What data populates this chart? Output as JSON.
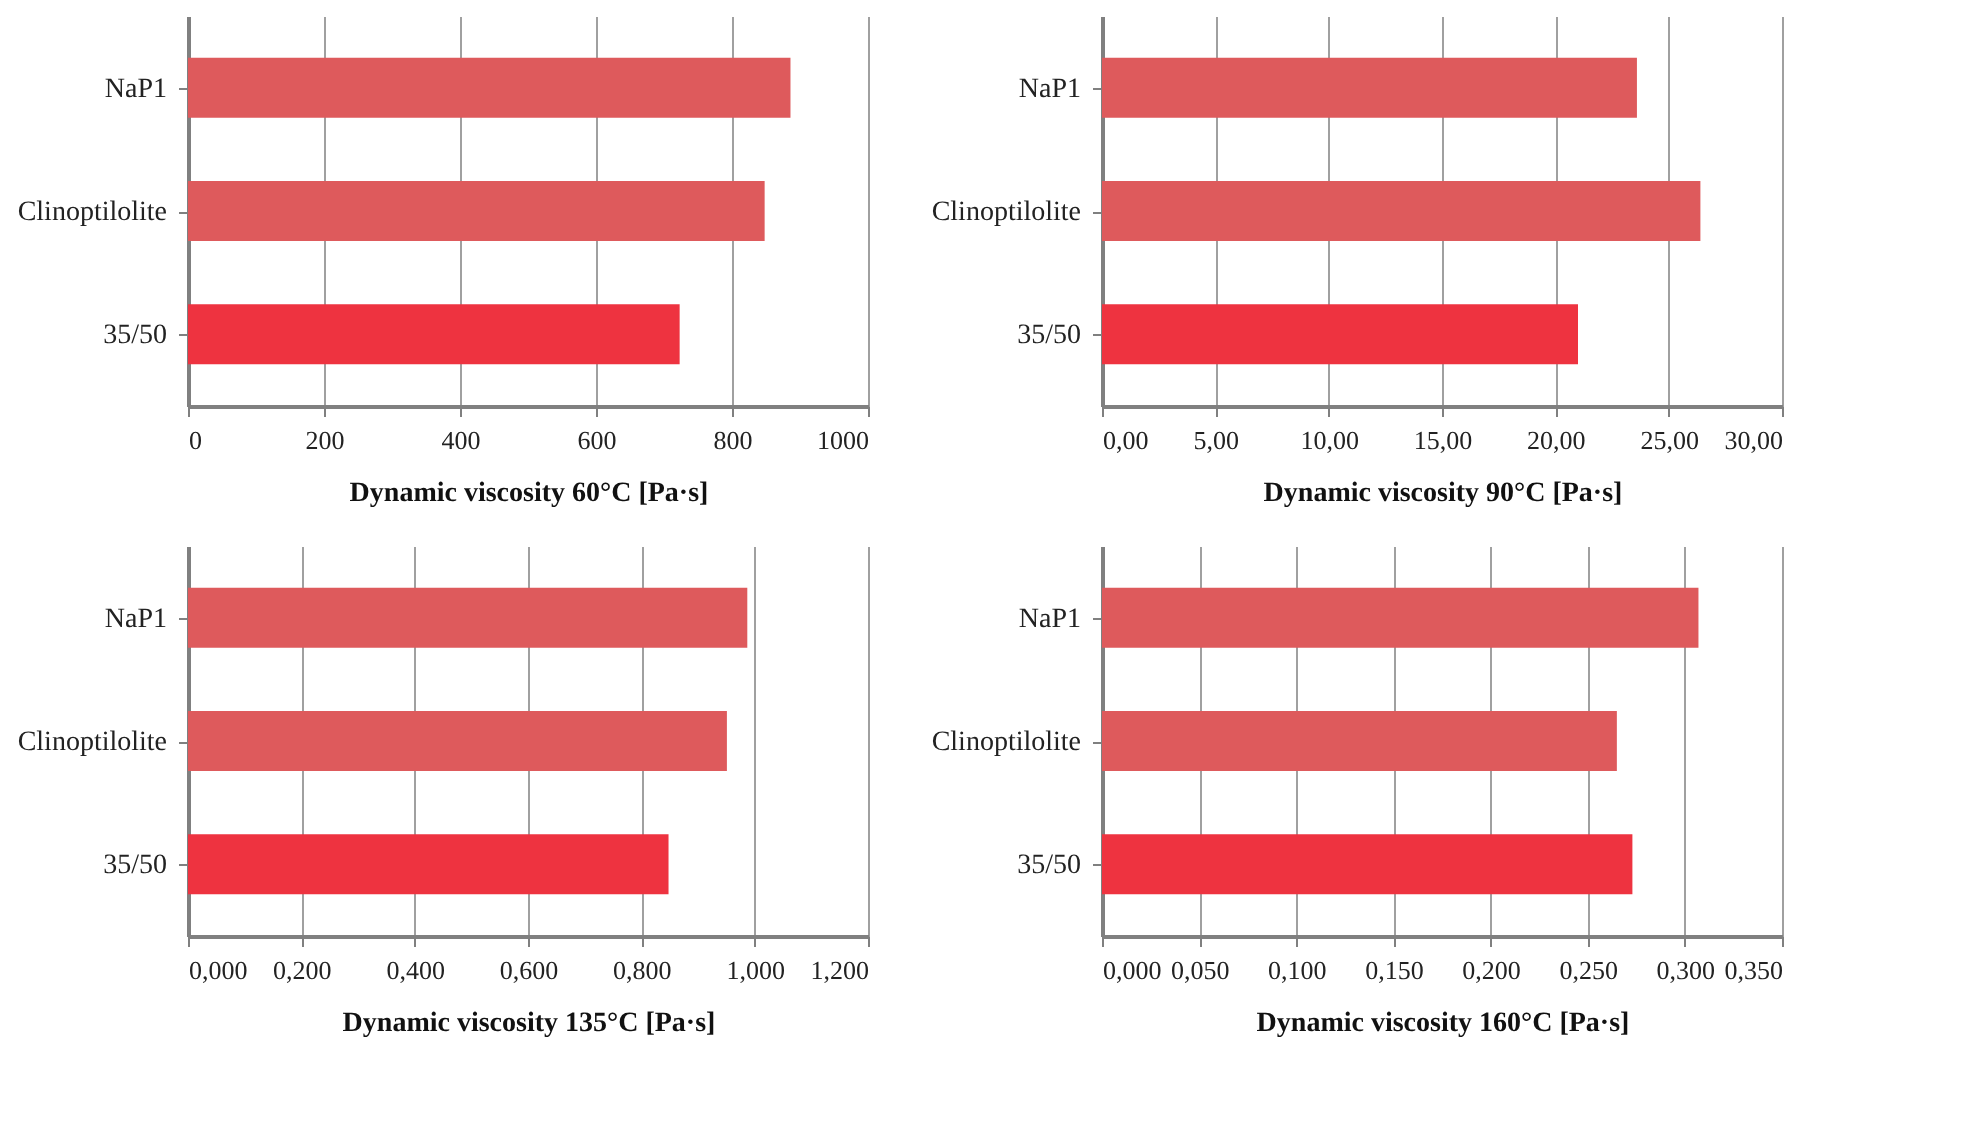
{
  "chart_data": [
    {
      "type": "bar",
      "orientation": "horizontal",
      "categories": [
        "NaP1",
        "Clinoptilolite",
        "35/50"
      ],
      "values": [
        886,
        848,
        723
      ],
      "colors": [
        "#de5a5c",
        "#de5a5c",
        "#ee3340"
      ],
      "xlim": [
        0,
        1000
      ],
      "xticks": [
        0,
        200,
        400,
        600,
        800,
        1000
      ],
      "xlabel": "Dynamic viscosity 60°C [Pa·s]",
      "grid": "x"
    },
    {
      "type": "bar",
      "orientation": "horizontal",
      "categories": [
        "NaP1",
        "Clinoptilolite",
        "35/50"
      ],
      "values": [
        23.6,
        26.4,
        21.0
      ],
      "colors": [
        "#de5a5c",
        "#de5a5c",
        "#ee3340"
      ],
      "xlim": [
        0,
        30
      ],
      "xticks": [
        {
          "value": 0,
          "label": "0,00"
        },
        {
          "value": 5,
          "label": "5,00"
        },
        {
          "value": 10,
          "label": "10,00"
        },
        {
          "value": 15,
          "label": "15,00"
        },
        {
          "value": 20,
          "label": "20,00"
        },
        {
          "value": 25,
          "label": "25,00"
        },
        {
          "value": 30,
          "label": "30,00"
        }
      ],
      "xlabel": "Dynamic viscosity 90°C [Pa·s]",
      "grid": "x"
    },
    {
      "type": "bar",
      "orientation": "horizontal",
      "categories": [
        "NaP1",
        "Clinoptilolite",
        "35/50"
      ],
      "values": [
        0.987,
        0.951,
        0.848
      ],
      "colors": [
        "#de5a5c",
        "#de5a5c",
        "#ee3340"
      ],
      "xlim": [
        0,
        1.2
      ],
      "xticks": [
        {
          "value": 0,
          "label": "0,000"
        },
        {
          "value": 0.2,
          "label": "0,200"
        },
        {
          "value": 0.4,
          "label": "0,400"
        },
        {
          "value": 0.6,
          "label": "0,600"
        },
        {
          "value": 0.8,
          "label": "0,800"
        },
        {
          "value": 1.0,
          "label": "1,000"
        },
        {
          "value": 1.2,
          "label": "1,200"
        }
      ],
      "xlabel": "Dynamic viscosity  135°C [Pa·s]",
      "grid": "x"
    },
    {
      "type": "bar",
      "orientation": "horizontal",
      "categories": [
        "NaP1",
        "Clinoptilolite",
        "35/50"
      ],
      "values": [
        0.307,
        0.265,
        0.273
      ],
      "colors": [
        "#de5a5c",
        "#de5a5c",
        "#ee3340"
      ],
      "xlim": [
        0,
        0.35
      ],
      "xticks": [
        {
          "value": 0,
          "label": "0,000"
        },
        {
          "value": 0.05,
          "label": "0,050"
        },
        {
          "value": 0.1,
          "label": "0,100"
        },
        {
          "value": 0.15,
          "label": "0,150"
        },
        {
          "value": 0.2,
          "label": "0,200"
        },
        {
          "value": 0.25,
          "label": "0,250"
        },
        {
          "value": 0.3,
          "label": "0,300"
        },
        {
          "value": 0.35,
          "label": "0,350"
        }
      ],
      "xlabel": "Dynamic viscosity  160°C [Pa·s]",
      "grid": "x"
    }
  ]
}
